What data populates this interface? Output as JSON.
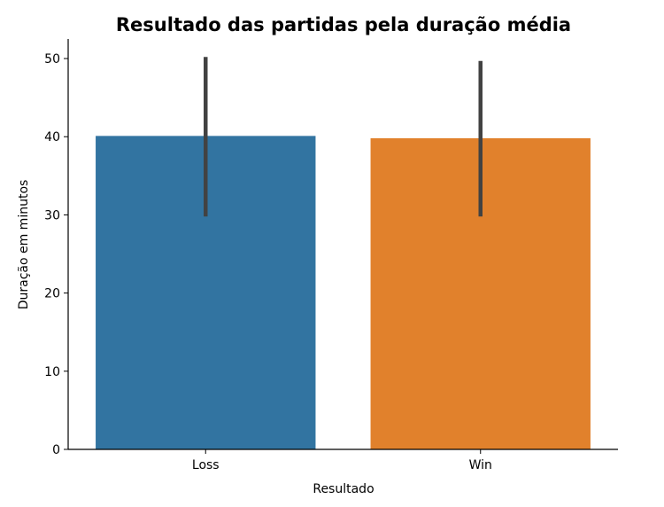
{
  "chart_data": {
    "type": "bar",
    "title": "Resultado das partidas pela duração média",
    "xlabel": "Resultado",
    "ylabel": "Duração em minutos",
    "categories": [
      "Loss",
      "Win"
    ],
    "values": [
      40.1,
      39.8
    ],
    "error_bars": [
      {
        "low": 29.8,
        "high": 50.2
      },
      {
        "low": 29.8,
        "high": 49.7
      }
    ],
    "colors": [
      "#3274a1",
      "#e1812c"
    ],
    "error_bar_color": "#424242",
    "ylim": [
      0,
      52.5
    ],
    "yticks": [
      0,
      10,
      20,
      30,
      40,
      50
    ],
    "grid": false,
    "legend": "none"
  }
}
